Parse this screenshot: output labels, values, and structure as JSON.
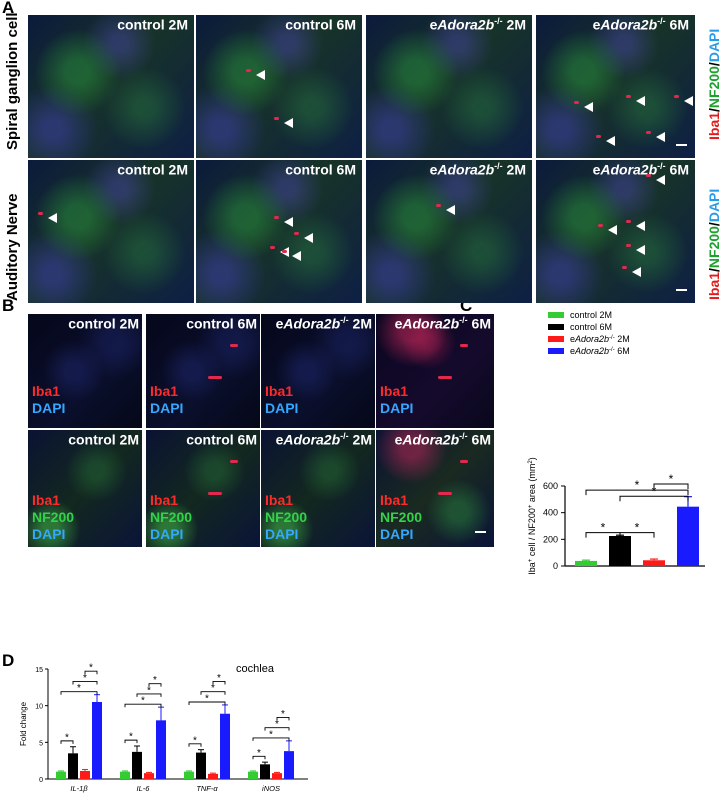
{
  "panels": {
    "a": "A",
    "b": "B",
    "c": "C",
    "d": "D"
  },
  "panel_a": {
    "row_labels": [
      "Spiral ganglion cell",
      "Auditory Nerve"
    ],
    "side_label": {
      "iba1": "Iba1",
      "sep1": "/",
      "nf200": "NF200",
      "sep2": "/",
      "dapi": "DAPI"
    },
    "columns": [
      {
        "pre": "control 2M",
        "gene": "",
        "sup": "",
        "post": ""
      },
      {
        "pre": "control 6M",
        "gene": "",
        "sup": "",
        "post": ""
      },
      {
        "pre": "e",
        "gene": "Adora2b",
        "sup": "-/-",
        "post": " 2M"
      },
      {
        "pre": "e",
        "gene": "Adora2b",
        "sup": "-/-",
        "post": " 6M"
      }
    ]
  },
  "panel_b": {
    "columns": [
      {
        "pre": "control 2M",
        "gene": "",
        "sup": "",
        "post": ""
      },
      {
        "pre": "control 6M",
        "gene": "",
        "sup": "",
        "post": ""
      },
      {
        "pre": "e",
        "gene": "Adora2b",
        "sup": "-/-",
        "post": " 2M"
      },
      {
        "pre": "e",
        "gene": "Adora2b",
        "sup": "-/-",
        "post": " 6M"
      }
    ],
    "top_stain": {
      "iba1": "Iba1",
      "dapi": "DAPI"
    },
    "bottom_stain": {
      "iba1": "Iba1",
      "nf200": "NF200",
      "dapi": "DAPI"
    }
  },
  "colors": {
    "control_2M": "#33cc33",
    "control_6M": "#000000",
    "eAdora2b_2M": "#ff1a1a",
    "eAdora2b_6M": "#1a1aff"
  },
  "chart_data": [
    {
      "type": "bar",
      "panel": "C",
      "categories": [
        "control 2M",
        "control 6M",
        "eAdora2b-/- 2M",
        "eAdora2b-/- 6M"
      ],
      "legend": [
        {
          "pre": "control  2M",
          "gene": "",
          "sup": "",
          "post": ""
        },
        {
          "pre": "control 6M",
          "gene": "",
          "sup": "",
          "post": ""
        },
        {
          "pre": "e",
          "gene": "Adora2b",
          "sup": "-/-",
          "post": " 2M"
        },
        {
          "pre": "e",
          "gene": "Adora2b",
          "sup": "-/-",
          "post": " 6M"
        }
      ],
      "values": [
        38,
        225,
        43,
        445
      ],
      "errors": [
        6,
        6,
        9,
        75
      ],
      "colors": [
        "#33cc33",
        "#000000",
        "#ff1a1a",
        "#1a1aff"
      ],
      "ylabel": {
        "a": "Iba",
        "a_sup": "+",
        "b": " cell / NF200",
        "b_sup": "+",
        "c": " area (mm",
        "c_sup": "2",
        "d": ")"
      },
      "ylim": [
        0,
        600
      ],
      "yticks": [
        0,
        200,
        400,
        600
      ],
      "significance": "*",
      "legend_position": "top"
    },
    {
      "type": "bar",
      "panel": "D",
      "title": "cochlea",
      "ylabel": "Fold change",
      "categories": [
        "IL-1β",
        "IL-6",
        "TNF-α",
        "iNOS"
      ],
      "series": [
        {
          "values": [
            1.0,
            1.0,
            1.0,
            1.0
          ],
          "errors": [
            0.1,
            0.1,
            0.1,
            0.1
          ],
          "color": "#33cc33"
        },
        {
          "values": [
            3.5,
            3.7,
            3.6,
            2.0
          ],
          "errors": [
            0.9,
            0.8,
            0.4,
            0.3
          ],
          "color": "#000000"
        },
        {
          "values": [
            1.1,
            0.8,
            0.7,
            0.8
          ],
          "errors": [
            0.2,
            0.1,
            0.1,
            0.1
          ],
          "color": "#ff1a1a"
        },
        {
          "values": [
            10.5,
            8.0,
            8.9,
            3.8
          ],
          "errors": [
            1.0,
            1.8,
            1.2,
            1.4
          ],
          "color": "#1a1aff"
        }
      ],
      "ylim": [
        0,
        15
      ],
      "yticks": [
        0,
        5,
        10,
        15
      ],
      "significance": "*"
    }
  ]
}
